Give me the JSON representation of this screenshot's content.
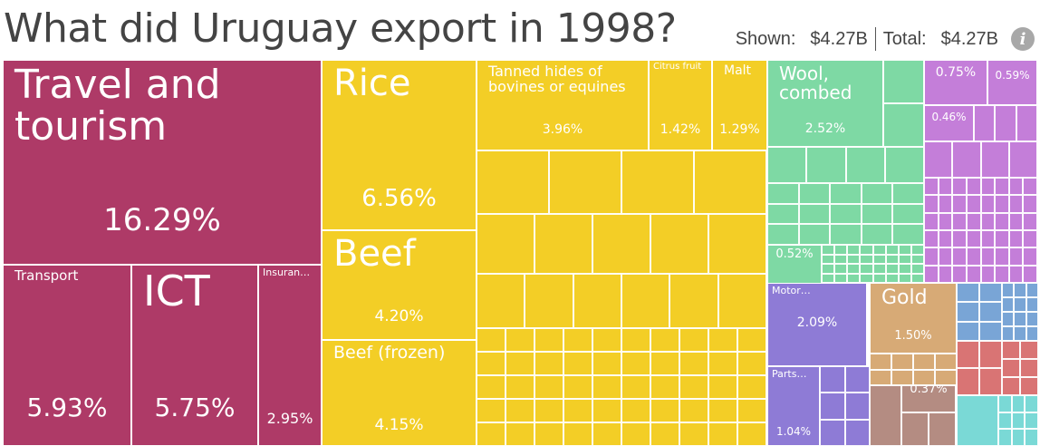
{
  "header": {
    "title": "What did Uruguay export in 1998?",
    "shown_label": "Shown:",
    "shown_value": "$4.27B",
    "total_label": "Total:",
    "total_value": "$4.27B",
    "info_icon": "info-icon"
  },
  "colors": {
    "services": "#AE3A67",
    "vegetable": "#F3CE26",
    "textiles": "#7ED9A4",
    "metals": "#C47ED9",
    "machinery": "#8E7BD6",
    "stone": "#D7AA76",
    "misc_brown": "#B48C82",
    "blue": "#79A5D6",
    "red": "#D97474",
    "cyan": "#7AD9D6"
  },
  "chart_data": {
    "type": "treemap",
    "title": "What did Uruguay export in 1998?",
    "total": "$4.27B",
    "items": [
      {
        "name": "Travel and tourism",
        "share": 16.29,
        "label": "16.29%"
      },
      {
        "name": "Transport",
        "share": 5.93,
        "label": "5.93%"
      },
      {
        "name": "ICT",
        "share": 5.75,
        "label": "5.75%"
      },
      {
        "name": "Insuran…",
        "share": 2.95,
        "label": "2.95%"
      },
      {
        "name": "Rice",
        "share": 6.56,
        "label": "6.56%"
      },
      {
        "name": "Beef",
        "share": 4.2,
        "label": "4.20%"
      },
      {
        "name": "Beef (frozen)",
        "share": 4.15,
        "label": "4.15%"
      },
      {
        "name": "Tanned hides of bovines or equines",
        "share": 3.96,
        "label": "3.96%"
      },
      {
        "name": "Citrus fruit",
        "share": 1.42,
        "label": "1.42%"
      },
      {
        "name": "Malt",
        "share": 1.29,
        "label": "1.29%"
      },
      {
        "name": "Wool, combed",
        "share": 2.52,
        "label": "2.52%"
      },
      {
        "name": "",
        "share": 0.52,
        "label": "0.52%"
      },
      {
        "name": "",
        "share": 0.75,
        "label": "0.75%"
      },
      {
        "name": "",
        "share": 0.59,
        "label": "0.59%"
      },
      {
        "name": "",
        "share": 0.46,
        "label": "0.46%"
      },
      {
        "name": "Motor…",
        "share": 2.09,
        "label": "2.09%"
      },
      {
        "name": "Parts…",
        "share": 1.04,
        "label": "1.04%"
      },
      {
        "name": "Gold",
        "share": 1.5,
        "label": "1.50%"
      },
      {
        "name": "",
        "share": 0.37,
        "label": "0.37%"
      }
    ]
  }
}
